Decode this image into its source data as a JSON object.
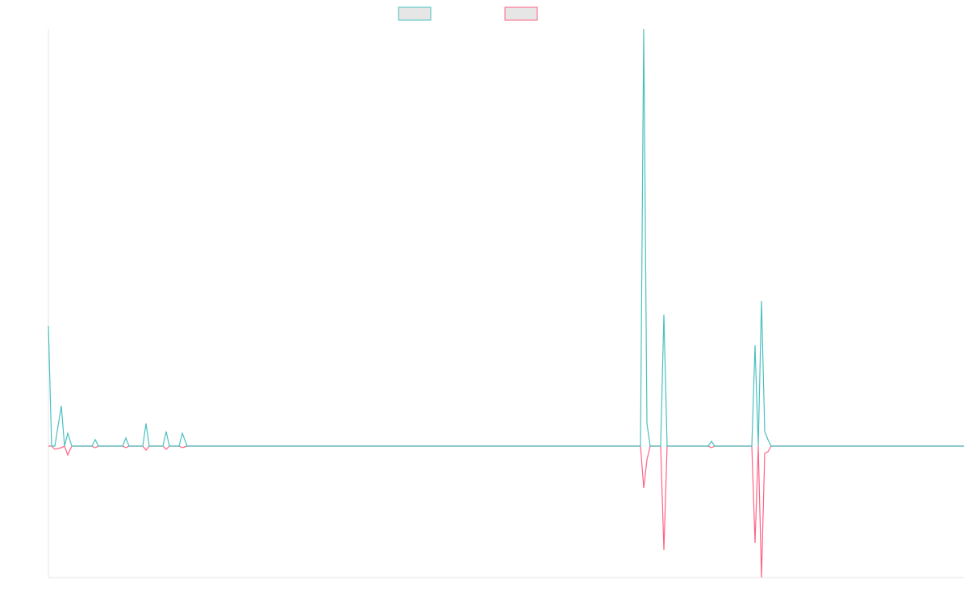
{
  "chart_data": {
    "type": "line",
    "x": [
      0,
      4,
      8,
      16,
      20,
      24,
      29,
      54,
      58,
      62,
      92,
      96,
      100,
      117,
      121,
      125,
      142,
      146,
      150,
      162,
      166,
      172,
      734,
      738,
      742,
      746,
      759,
      763,
      767,
      818,
      822,
      826,
      872,
      876,
      880,
      884,
      888,
      892,
      896,
      1135
    ],
    "xlim": [
      0,
      1135
    ],
    "ylim": [
      -163,
      517
    ],
    "legend": "top",
    "series": [
      {
        "color": "#4bc0c0",
        "values": [
          149,
          0,
          0,
          50,
          0,
          16,
          0,
          0,
          8,
          0,
          0,
          10,
          0,
          0,
          28,
          0,
          0,
          18,
          0,
          0,
          16,
          0,
          0,
          517,
          28,
          0,
          0,
          163,
          0,
          0,
          6,
          0,
          0,
          125,
          0,
          180,
          18,
          8,
          0,
          0
        ]
      },
      {
        "color": "#ff6384",
        "values": [
          0,
          0,
          -4,
          -2,
          0,
          -11,
          0,
          0,
          -2,
          0,
          0,
          -2,
          0,
          0,
          -5,
          0,
          0,
          -4,
          0,
          0,
          -2,
          0,
          0,
          -52,
          -17,
          0,
          0,
          -129,
          0,
          0,
          -2,
          0,
          0,
          -120,
          0,
          -163,
          -9,
          -7,
          0,
          0
        ]
      }
    ]
  }
}
